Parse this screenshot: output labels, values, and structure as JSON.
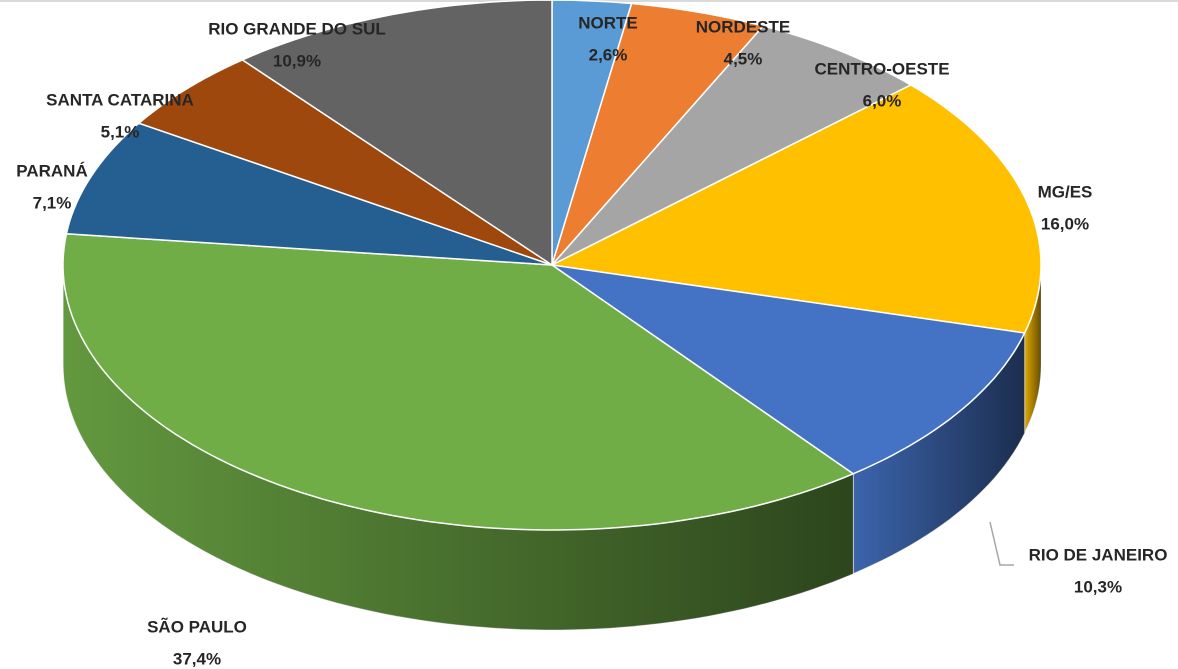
{
  "chart_data": {
    "type": "pie",
    "categories": [
      "NORTE",
      "NORDESTE",
      "CENTRO-OESTE",
      "MG/ES",
      "RIO DE JANEIRO",
      "SÃO PAULO",
      "PARANÁ",
      "SANTA CATARINA",
      "RIO GRANDE DO SUL"
    ],
    "values": [
      2.6,
      4.5,
      6.0,
      16.0,
      10.3,
      37.4,
      7.1,
      5.1,
      10.9
    ],
    "value_labels": [
      "2,6%",
      "4,5%",
      "6,0%",
      "16,0%",
      "10,3%",
      "37,4%",
      "7,1%",
      "5,1%",
      "10,9%"
    ],
    "colors": [
      "#5b9bd5",
      "#ed7d31",
      "#a5a5a5",
      "#ffc000",
      "#4472c4",
      "#70ad47",
      "#255e91",
      "#9e480e",
      "#636363"
    ]
  }
}
